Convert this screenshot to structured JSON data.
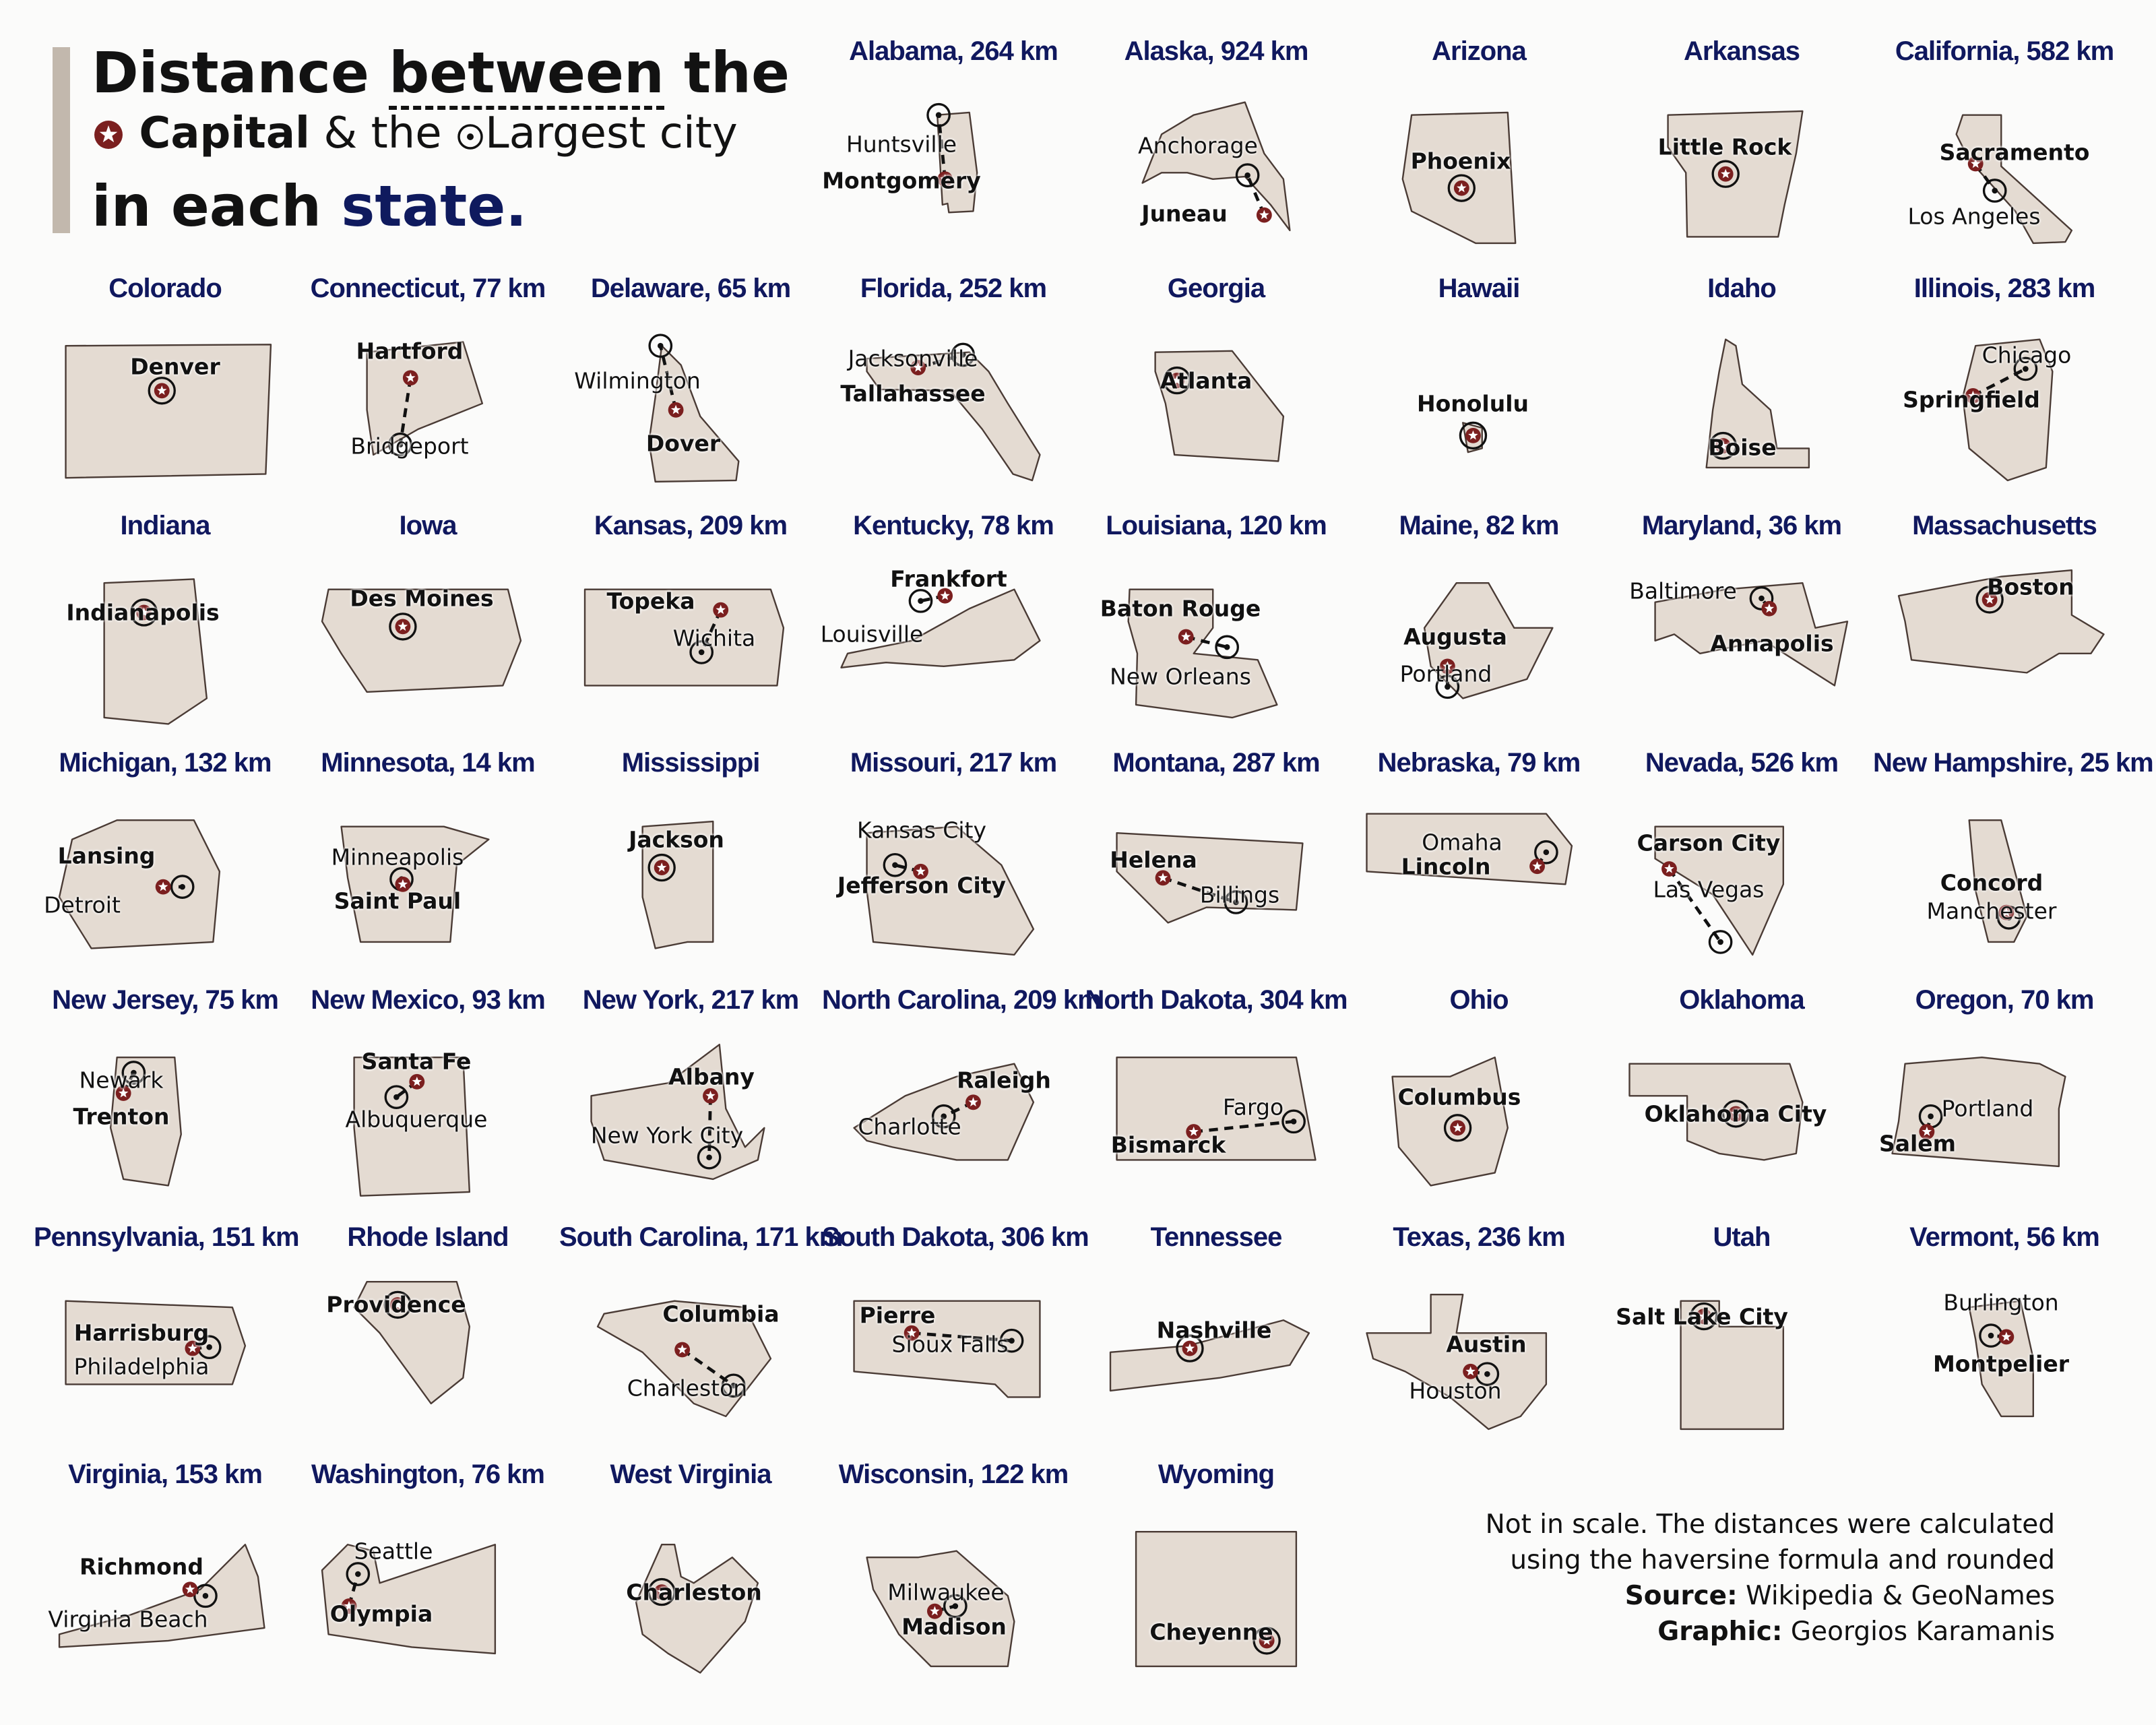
{
  "title": {
    "w1": "Distance",
    "w2": "between",
    "w3": "the",
    "capital": "Capital",
    "amp": "& the",
    "largest": "Largest city",
    "line3a": "in each",
    "line3b": "state."
  },
  "note": {
    "line1": "Not in scale. The distances were calculated",
    "line2": "using the haversine formula and rounded",
    "source_label": "Source:",
    "source_text": "Wikipedia & GeoNames",
    "graphic_label": "Graphic:",
    "graphic_text": "Georgios Karamanis"
  },
  "states": [
    {
      "title": "Alabama, 264 km",
      "shape": "al",
      "capital": "Montgomery",
      "largest": "Huntsville"
    },
    {
      "title": "Alaska, 924 km",
      "shape": "ak",
      "capital": "Juneau",
      "largest": "Anchorage"
    },
    {
      "title": "Arizona",
      "shape": "az",
      "capital": "Phoenix",
      "largest": null
    },
    {
      "title": "Arkansas",
      "shape": "ar",
      "capital": "Little Rock",
      "largest": null
    },
    {
      "title": "California, 582 km",
      "shape": "ca",
      "capital": "Sacramento",
      "largest": "Los Angeles"
    },
    {
      "title": "Colorado",
      "shape": "co",
      "capital": "Denver",
      "largest": null
    },
    {
      "title": "Connecticut, 77 km",
      "shape": "ct",
      "capital": "Hartford",
      "largest": "Bridgeport"
    },
    {
      "title": "Delaware, 65 km",
      "shape": "de",
      "capital": "Dover",
      "largest": "Wilmington"
    },
    {
      "title": "Florida, 252 km",
      "shape": "fl",
      "capital": "Tallahassee",
      "largest": "Jacksonville"
    },
    {
      "title": "Georgia",
      "shape": "ga",
      "capital": "Atlanta",
      "largest": null
    },
    {
      "title": "Hawaii",
      "shape": "hi",
      "capital": "Honolulu",
      "largest": null
    },
    {
      "title": "Idaho",
      "shape": "id",
      "capital": "Boise",
      "largest": null
    },
    {
      "title": "Illinois, 283 km",
      "shape": "il",
      "capital": "Springfield",
      "largest": "Chicago"
    },
    {
      "title": "Indiana",
      "shape": "in",
      "capital": "Indianapolis",
      "largest": null
    },
    {
      "title": "Iowa",
      "shape": "ia",
      "capital": "Des Moines",
      "largest": null
    },
    {
      "title": "Kansas, 209 km",
      "shape": "ks",
      "capital": "Topeka",
      "largest": "Wichita"
    },
    {
      "title": "Kentucky, 78 km",
      "shape": "ky",
      "capital": "Frankfort",
      "largest": "Louisville"
    },
    {
      "title": "Louisiana, 120 km",
      "shape": "la",
      "capital": "Baton Rouge",
      "largest": "New Orleans"
    },
    {
      "title": "Maine, 82 km",
      "shape": "me",
      "capital": "Augusta",
      "largest": "Portland"
    },
    {
      "title": "Maryland, 36 km",
      "shape": "md",
      "capital": "Annapolis",
      "largest": "Baltimore"
    },
    {
      "title": "Massachusetts",
      "shape": "ma",
      "capital": "Boston",
      "largest": null
    },
    {
      "title": "Michigan, 132 km",
      "shape": "mi",
      "capital": "Lansing",
      "largest": "Detroit"
    },
    {
      "title": "Minnesota, 14 km",
      "shape": "mn",
      "capital": "Saint Paul",
      "largest": "Minneapolis"
    },
    {
      "title": "Mississippi",
      "shape": "ms",
      "capital": "Jackson",
      "largest": null
    },
    {
      "title": "Missouri, 217 km",
      "shape": "mo",
      "capital": "Jefferson City",
      "largest": "Kansas City"
    },
    {
      "title": "Montana, 287 km",
      "shape": "mt",
      "capital": "Helena",
      "largest": "Billings"
    },
    {
      "title": "Nebraska, 79 km",
      "shape": "ne",
      "capital": "Lincoln",
      "largest": "Omaha"
    },
    {
      "title": "Nevada, 526 km",
      "shape": "nv",
      "capital": "Carson City",
      "largest": "Las Vegas"
    },
    {
      "title": "New Hampshire, 25 km",
      "shape": "nh",
      "capital": "Concord",
      "largest": "Manchester"
    },
    {
      "title": "New Jersey, 75 km",
      "shape": "nj",
      "capital": "Trenton",
      "largest": "Newark"
    },
    {
      "title": "New Mexico, 93 km",
      "shape": "nm",
      "capital": "Santa Fe",
      "largest": "Albuquerque"
    },
    {
      "title": "New York, 217 km",
      "shape": "ny",
      "capital": "Albany",
      "largest": "New York City"
    },
    {
      "title": "North Carolina, 209 km",
      "shape": "nc",
      "capital": "Raleigh",
      "largest": "Charlotte"
    },
    {
      "title": "North Dakota, 304 km",
      "shape": "nd",
      "capital": "Bismarck",
      "largest": "Fargo"
    },
    {
      "title": "Ohio",
      "shape": "oh",
      "capital": "Columbus",
      "largest": null
    },
    {
      "title": "Oklahoma",
      "shape": "ok",
      "capital": "Oklahoma City",
      "largest": null
    },
    {
      "title": "Oregon, 70 km",
      "shape": "or",
      "capital": "Salem",
      "largest": "Portland"
    },
    {
      "title": "Pennsylvania, 151 km",
      "shape": "pa",
      "capital": "Harrisburg",
      "largest": "Philadelphia"
    },
    {
      "title": "Rhode Island",
      "shape": "ri",
      "capital": "Providence",
      "largest": null
    },
    {
      "title": "South Carolina, 171 km",
      "shape": "sc",
      "capital": "Columbia",
      "largest": "Charleston"
    },
    {
      "title": "South Dakota, 306 km",
      "shape": "sd",
      "capital": "Pierre",
      "largest": "Sioux Falls"
    },
    {
      "title": "Tennessee",
      "shape": "tn",
      "capital": "Nashville",
      "largest": null
    },
    {
      "title": "Texas, 236 km",
      "shape": "tx",
      "capital": "Austin",
      "largest": "Houston"
    },
    {
      "title": "Utah",
      "shape": "ut",
      "capital": "Salt Lake City",
      "largest": null
    },
    {
      "title": "Vermont, 56 km",
      "shape": "vt",
      "capital": "Montpelier",
      "largest": "Burlington"
    },
    {
      "title": "Virginia, 153 km",
      "shape": "va",
      "capital": "Richmond",
      "largest": "Virginia Beach"
    },
    {
      "title": "Washington, 76 km",
      "shape": "wa",
      "capital": "Olympia",
      "largest": "Seattle"
    },
    {
      "title": "West Virginia",
      "shape": "wv",
      "capital": "Charleston",
      "largest": null
    },
    {
      "title": "Wisconsin, 122 km",
      "shape": "wi",
      "capital": "Madison",
      "largest": "Milwaukee"
    },
    {
      "title": "Wyoming",
      "shape": "wy",
      "capital": "Cheyenne",
      "largest": null
    }
  ],
  "colors": {
    "title_navy": "#10185e",
    "state_fill": "#e4dbd2",
    "state_stroke": "#4a3b35",
    "capital_red": "#7b1f1f",
    "accent_bar": "#c2b8ad"
  }
}
